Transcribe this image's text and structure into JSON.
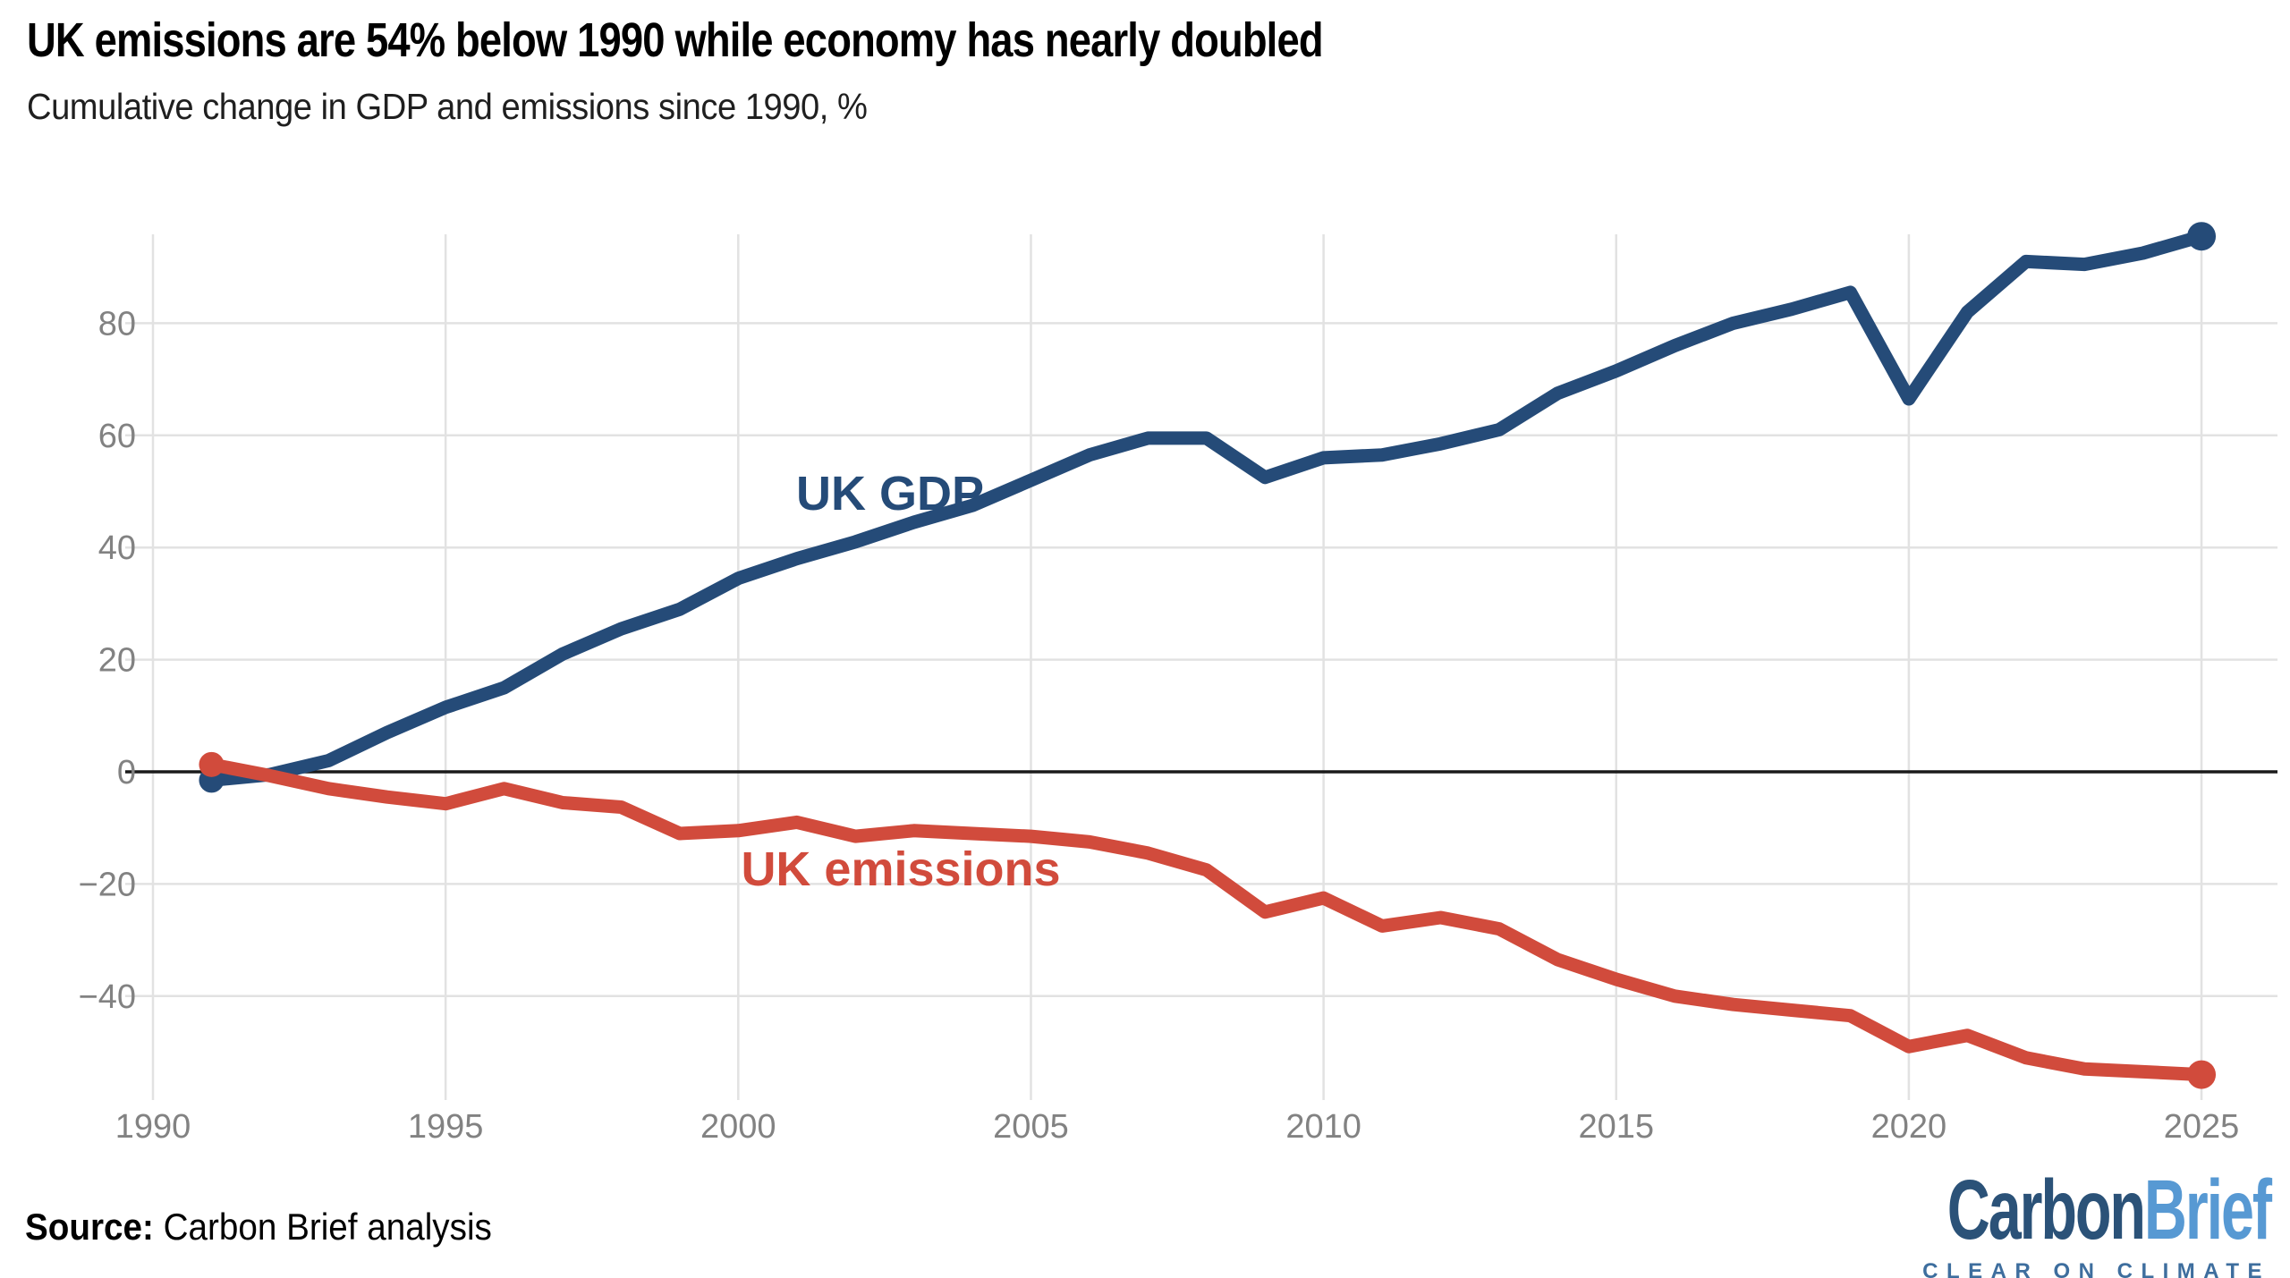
{
  "chart_data": {
    "type": "line",
    "title": "UK emissions are 54% below 1990 while economy has nearly doubled",
    "subtitle": "Cumulative change in GDP and emissions since 1990, %",
    "x": [
      1991,
      1992,
      1993,
      1994,
      1995,
      1996,
      1997,
      1998,
      1999,
      2000,
      2001,
      2002,
      2003,
      2004,
      2005,
      2006,
      2007,
      2008,
      2009,
      2010,
      2011,
      2012,
      2013,
      2014,
      2015,
      2016,
      2017,
      2018,
      2019,
      2020,
      2021,
      2022,
      2023,
      2024,
      2025
    ],
    "series": [
      {
        "name": "UK GDP",
        "color": "#254b78",
        "values": [
          -1.5,
          -0.5,
          2,
          7,
          11.5,
          15,
          21,
          25.5,
          29,
          34.5,
          38,
          41,
          44.5,
          47.5,
          52,
          56.5,
          59.5,
          59.5,
          52.5,
          56,
          56.5,
          58.5,
          61,
          67.5,
          71.5,
          76,
          80,
          82.5,
          85.5,
          66.5,
          82,
          91,
          90.5,
          92.5,
          95.5
        ]
      },
      {
        "name": "UK emissions",
        "color": "#d14b3c",
        "values": [
          1.3,
          -0.7,
          -3,
          -4.5,
          -5.7,
          -3,
          -5.5,
          -6.3,
          -11,
          -10.5,
          -9,
          -11.5,
          -10.5,
          -11,
          -11.5,
          -12.5,
          -14.5,
          -17.5,
          -25,
          -22.5,
          -27.5,
          -26,
          -28,
          -33.5,
          -37,
          -40,
          -41.5,
          -42.5,
          -43.5,
          -49,
          -47,
          -51,
          -53,
          -53.5,
          -54
        ]
      }
    ],
    "xlabel": "",
    "ylabel": "",
    "xlim": [
      1990,
      2025
    ],
    "ylim": [
      -58,
      96
    ],
    "ticks_x": [
      1990,
      1995,
      2000,
      2005,
      2010,
      2015,
      2020,
      2025
    ],
    "ticks_y": [
      80,
      60,
      40,
      20,
      0,
      -20,
      -40
    ],
    "grid": "on",
    "legend_position": "inline-labels",
    "zero_line": true,
    "annotations": [
      "UK GDP",
      "UK emissions"
    ]
  },
  "footer": {
    "source_label": "Source:",
    "source_text": " Carbon Brief analysis",
    "logo": {
      "part1": "Carbon",
      "part2": "Brief",
      "tagline": "CLEAR ON CLIMATE"
    }
  },
  "colors": {
    "gdp_line": "#254b78",
    "emissions_line": "#d14b3c",
    "grid": "#e2e2e2",
    "zero_line": "#1a1a1a",
    "tick_label": "#828282",
    "title": "#000000",
    "subtitle": "#1f1f1f",
    "logo_carbon": "#2b5278",
    "logo_brief": "#5799d3",
    "logo_tagline": "#3e6e9e"
  }
}
